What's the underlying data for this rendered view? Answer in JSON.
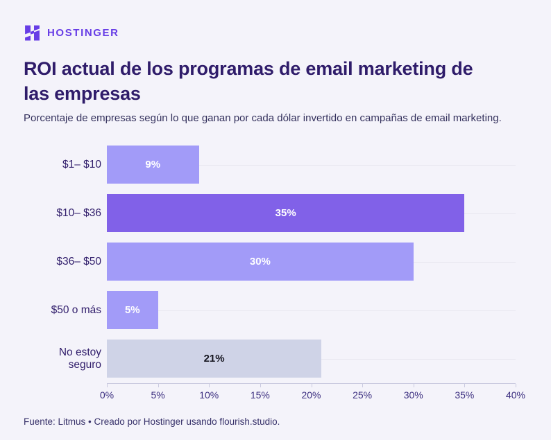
{
  "brand": {
    "wordmark": "HOSTINGER",
    "logo_icon": "hostinger-h-mark"
  },
  "header": {
    "title": "ROI actual de los programas de email marketing de\nlas empresas",
    "subtitle": "Porcentaje de empresas según lo que ganan por cada dólar invertido en campañas de email marketing."
  },
  "chart_data": {
    "type": "bar",
    "orientation": "horizontal",
    "title": "ROI actual de los programas de email marketing de las empresas",
    "subtitle": "Porcentaje de empresas según lo que ganan por cada dólar invertido en campañas de email marketing.",
    "categories": [
      "$1– $10",
      "$10– $36",
      "$36– $50",
      "$50 o más",
      "No estoy seguro"
    ],
    "values": [
      9,
      35,
      30,
      5,
      21
    ],
    "value_labels": [
      "9%",
      "35%",
      "30%",
      "5%",
      "21%"
    ],
    "bar_colors": [
      "#a29bf8",
      "#8161e8",
      "#a29bf8",
      "#a29bf8",
      "#cfd3e7"
    ],
    "value_label_colors": [
      "#ffffff",
      "#ffffff",
      "#ffffff",
      "#ffffff",
      "#15151f"
    ],
    "xlim": [
      0,
      40
    ],
    "x_tick_values": [
      0,
      5,
      10,
      15,
      20,
      25,
      30,
      35,
      40
    ],
    "x_ticks": [
      "0%",
      "5%",
      "10%",
      "15%",
      "20%",
      "25%",
      "30%",
      "35%",
      "40%"
    ],
    "xlabel": "",
    "ylabel": "",
    "grid": "horizontal line through each row center",
    "legend": "none"
  },
  "footer": {
    "source": "Fuente: Litmus • Creado por Hostinger usando flourish.studio."
  },
  "colors": {
    "background": "#f4f3fa",
    "brand_purple": "#673de6",
    "title_text": "#2f1c6a",
    "axis_text": "#3c2f80",
    "gridline": "#e8e7f0",
    "axis_line": "#c9c9df"
  }
}
